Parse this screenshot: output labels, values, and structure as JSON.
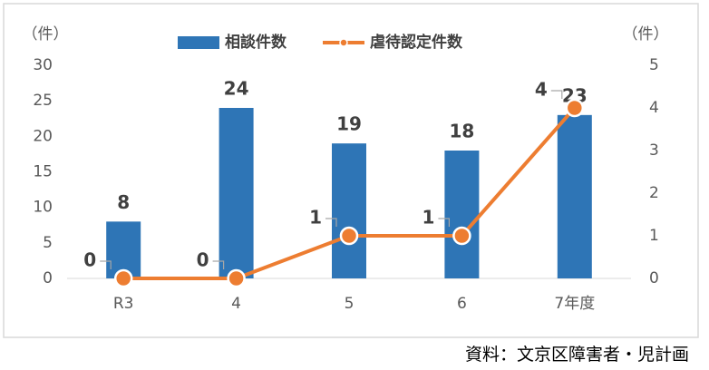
{
  "chart_data": {
    "type": "combo",
    "y_unit_label": "（件）",
    "y2_unit_label": "（件）",
    "categories": [
      "R3",
      "4",
      "5",
      "6",
      "7年度"
    ],
    "series": [
      {
        "name": "相談件数",
        "type": "bar",
        "color": "#2e75b6",
        "values": [
          8,
          24,
          19,
          18,
          23
        ]
      },
      {
        "name": "虐待認定件数",
        "type": "line",
        "axis": "y2",
        "color": "#ed7d31",
        "values": [
          0,
          0,
          1,
          1,
          4
        ]
      }
    ],
    "ylim": [
      0,
      30
    ],
    "yticks": [
      0,
      5,
      10,
      15,
      20,
      25,
      30
    ],
    "y2lim": [
      0,
      5
    ],
    "y2ticks": [
      0,
      1,
      2,
      3,
      4,
      5
    ],
    "grid": false,
    "legend": "top",
    "source": "資料：文京区障害者・児計画"
  }
}
